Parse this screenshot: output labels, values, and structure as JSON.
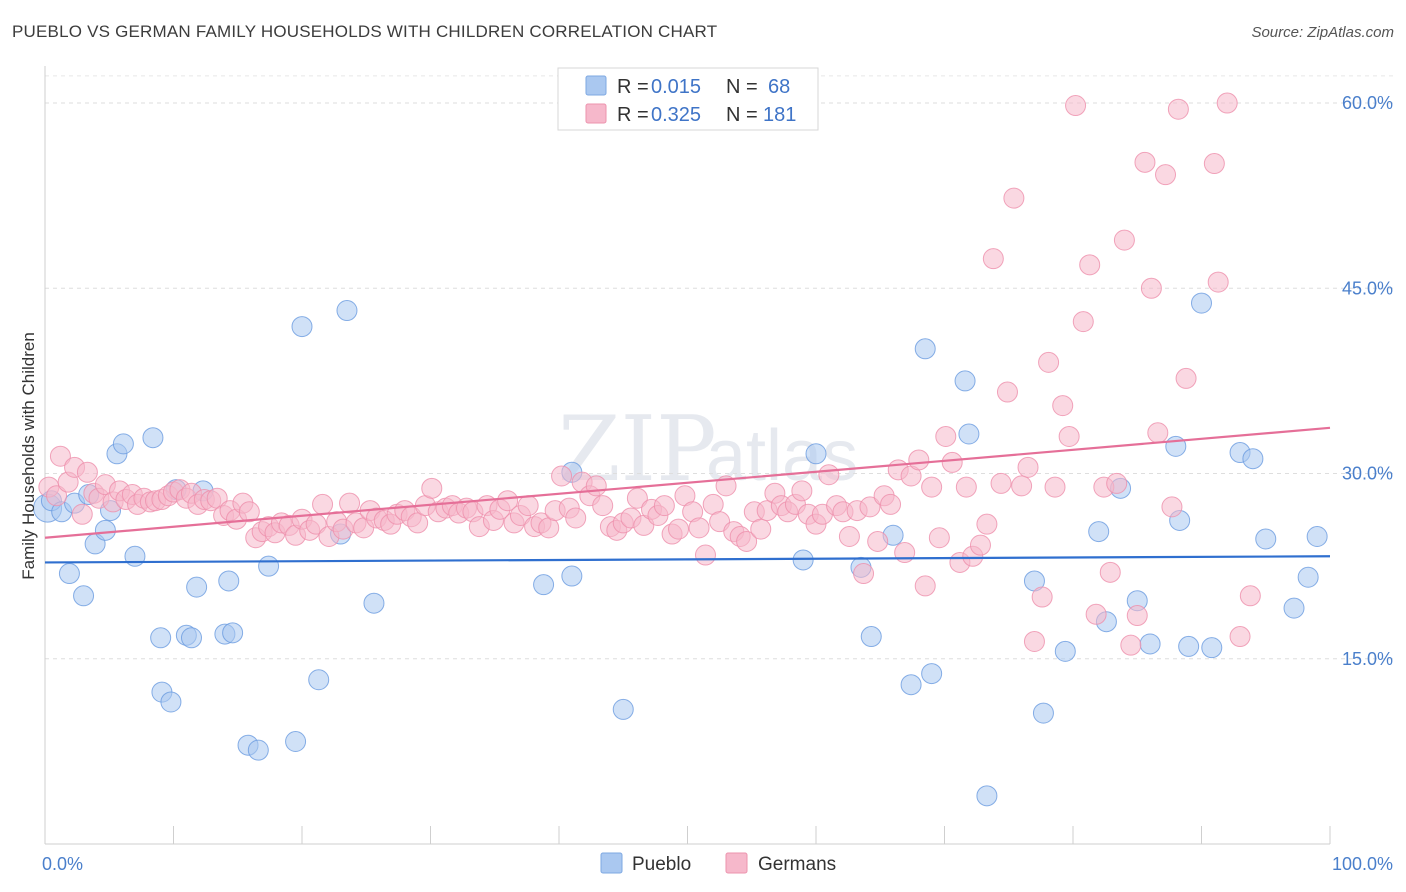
{
  "title": "PUEBLO VS GERMAN FAMILY HOUSEHOLDS WITH CHILDREN CORRELATION CHART",
  "source": "Source: ZipAtlas.com",
  "watermark": {
    "zip": "ZIP",
    "atlas": "atlas"
  },
  "legend_top": [
    {
      "r_label": "R =",
      "r_value": "0.015",
      "n_label": "N =",
      "n_value": "68",
      "color": "#aac8f0"
    },
    {
      "r_label": "R =",
      "r_value": "0.325",
      "n_label": "N =",
      "n_value": "181",
      "color": "#f6b8cb"
    }
  ],
  "legend_bottom": [
    {
      "label": "Pueblo",
      "color": "#aac8f0"
    },
    {
      "label": "Germans",
      "color": "#f6b8cb"
    }
  ],
  "chart_data": {
    "type": "scatter",
    "title": "PUEBLO VS GERMAN FAMILY HOUSEHOLDS WITH CHILDREN CORRELATION CHART",
    "xlabel": "",
    "ylabel": "Family Households with Children",
    "xlim": [
      0,
      100
    ],
    "ylim": [
      0,
      63
    ],
    "x_tick_labels": [
      "0.0%",
      "100.0%"
    ],
    "y_ticks": [
      15,
      30,
      45,
      60
    ],
    "y_tick_labels": [
      "15.0%",
      "30.0%",
      "45.0%",
      "60.0%"
    ],
    "grid": true,
    "legend_position": "top-center",
    "series": [
      {
        "name": "Pueblo",
        "color": "#6a9be0",
        "fill": "#aac8f0",
        "trend": {
          "x": [
            0,
            100
          ],
          "y": [
            22.8,
            23.3
          ],
          "color": "#2f6fcf"
        },
        "points": [
          [
            0.2,
            27.2
          ],
          [
            0.5,
            27.8
          ],
          [
            1.3,
            26.9
          ],
          [
            1.9,
            21.9
          ],
          [
            2.3,
            27.6
          ],
          [
            3.0,
            20.1
          ],
          [
            3.4,
            28.3
          ],
          [
            3.9,
            24.3
          ],
          [
            4.7,
            25.4
          ],
          [
            5.1,
            27.0
          ],
          [
            5.6,
            31.6
          ],
          [
            6.1,
            32.4
          ],
          [
            7.0,
            23.3
          ],
          [
            8.4,
            32.9
          ],
          [
            9.0,
            16.7
          ],
          [
            9.1,
            12.3
          ],
          [
            9.8,
            11.5
          ],
          [
            10.2,
            28.7
          ],
          [
            11.0,
            16.9
          ],
          [
            11.4,
            16.7
          ],
          [
            11.8,
            20.8
          ],
          [
            12.3,
            28.6
          ],
          [
            14.0,
            17.0
          ],
          [
            14.3,
            21.3
          ],
          [
            14.6,
            17.1
          ],
          [
            15.8,
            8.0
          ],
          [
            16.6,
            7.6
          ],
          [
            17.4,
            22.5
          ],
          [
            19.5,
            8.3
          ],
          [
            20.0,
            41.9
          ],
          [
            21.3,
            13.3
          ],
          [
            23.0,
            25.1
          ],
          [
            23.5,
            43.2
          ],
          [
            25.6,
            19.5
          ],
          [
            38.8,
            21.0
          ],
          [
            41.0,
            30.1
          ],
          [
            41.0,
            21.7
          ],
          [
            45.0,
            10.9
          ],
          [
            59.0,
            23.0
          ],
          [
            60.0,
            31.6
          ],
          [
            63.5,
            22.4
          ],
          [
            64.3,
            16.8
          ],
          [
            66.0,
            25.0
          ],
          [
            67.4,
            12.9
          ],
          [
            68.5,
            40.1
          ],
          [
            69.0,
            13.8
          ],
          [
            71.6,
            37.5
          ],
          [
            71.9,
            33.2
          ],
          [
            73.3,
            3.9
          ],
          [
            77.0,
            21.3
          ],
          [
            77.7,
            10.6
          ],
          [
            79.4,
            15.6
          ],
          [
            82.0,
            25.3
          ],
          [
            82.6,
            18.0
          ],
          [
            83.7,
            28.8
          ],
          [
            85.0,
            19.7
          ],
          [
            86.0,
            16.2
          ],
          [
            88.0,
            32.2
          ],
          [
            88.3,
            26.2
          ],
          [
            89.0,
            16.0
          ],
          [
            90.0,
            43.8
          ],
          [
            90.8,
            15.9
          ],
          [
            93.0,
            31.7
          ],
          [
            94.0,
            31.2
          ],
          [
            95.0,
            24.7
          ],
          [
            97.2,
            19.1
          ],
          [
            98.3,
            21.6
          ],
          [
            99.0,
            24.9
          ]
        ]
      },
      {
        "name": "Germans",
        "color": "#ee8fab",
        "fill": "#f6b8cb",
        "trend": {
          "x": [
            0,
            100
          ],
          "y": [
            24.8,
            33.7
          ],
          "color": "#e56f98"
        },
        "points": [
          [
            0.3,
            28.9
          ],
          [
            0.9,
            28.2
          ],
          [
            1.2,
            31.4
          ],
          [
            1.8,
            29.3
          ],
          [
            2.3,
            30.5
          ],
          [
            2.9,
            26.7
          ],
          [
            3.3,
            30.1
          ],
          [
            3.8,
            28.4
          ],
          [
            4.2,
            28.0
          ],
          [
            4.7,
            29.1
          ],
          [
            5.3,
            27.7
          ],
          [
            5.8,
            28.6
          ],
          [
            6.3,
            27.9
          ],
          [
            6.8,
            28.3
          ],
          [
            7.2,
            27.5
          ],
          [
            7.7,
            28.0
          ],
          [
            8.2,
            27.7
          ],
          [
            8.6,
            27.8
          ],
          [
            9.1,
            27.9
          ],
          [
            9.6,
            28.2
          ],
          [
            10.0,
            28.5
          ],
          [
            10.5,
            28.7
          ],
          [
            11.0,
            28.0
          ],
          [
            11.4,
            28.4
          ],
          [
            11.9,
            27.5
          ],
          [
            12.4,
            27.9
          ],
          [
            12.9,
            27.8
          ],
          [
            13.4,
            28.0
          ],
          [
            13.9,
            26.6
          ],
          [
            14.4,
            27.0
          ],
          [
            14.9,
            26.3
          ],
          [
            15.4,
            27.6
          ],
          [
            15.9,
            26.9
          ],
          [
            16.4,
            24.8
          ],
          [
            16.9,
            25.3
          ],
          [
            17.4,
            25.7
          ],
          [
            17.9,
            25.2
          ],
          [
            18.4,
            26.0
          ],
          [
            19.0,
            25.8
          ],
          [
            19.5,
            25.0
          ],
          [
            20.0,
            26.3
          ],
          [
            20.6,
            25.4
          ],
          [
            21.1,
            25.9
          ],
          [
            21.6,
            27.5
          ],
          [
            22.1,
            24.9
          ],
          [
            22.7,
            26.1
          ],
          [
            23.2,
            25.5
          ],
          [
            23.7,
            27.6
          ],
          [
            24.2,
            26.0
          ],
          [
            24.8,
            25.6
          ],
          [
            25.3,
            27.0
          ],
          [
            25.8,
            26.4
          ],
          [
            26.4,
            26.2
          ],
          [
            26.9,
            25.9
          ],
          [
            27.4,
            26.7
          ],
          [
            28.0,
            27.0
          ],
          [
            28.5,
            26.5
          ],
          [
            29.0,
            26.0
          ],
          [
            29.6,
            27.4
          ],
          [
            30.1,
            28.8
          ],
          [
            30.6,
            26.9
          ],
          [
            31.2,
            27.2
          ],
          [
            31.7,
            27.4
          ],
          [
            32.2,
            26.8
          ],
          [
            32.8,
            27.2
          ],
          [
            33.3,
            26.9
          ],
          [
            33.8,
            25.7
          ],
          [
            34.4,
            27.4
          ],
          [
            34.9,
            26.2
          ],
          [
            35.4,
            27.1
          ],
          [
            36.0,
            27.8
          ],
          [
            36.5,
            26.0
          ],
          [
            37.0,
            26.6
          ],
          [
            37.6,
            27.4
          ],
          [
            38.1,
            25.7
          ],
          [
            38.6,
            26.0
          ],
          [
            39.2,
            25.6
          ],
          [
            39.7,
            27.0
          ],
          [
            40.2,
            29.8
          ],
          [
            40.8,
            27.2
          ],
          [
            41.3,
            26.4
          ],
          [
            41.8,
            29.3
          ],
          [
            42.4,
            28.2
          ],
          [
            42.9,
            29.0
          ],
          [
            43.4,
            27.4
          ],
          [
            44.0,
            25.7
          ],
          [
            44.5,
            25.4
          ],
          [
            45.0,
            26.0
          ],
          [
            45.6,
            26.4
          ],
          [
            46.1,
            28.0
          ],
          [
            46.6,
            25.8
          ],
          [
            47.2,
            27.1
          ],
          [
            47.7,
            26.6
          ],
          [
            48.2,
            27.4
          ],
          [
            48.8,
            25.1
          ],
          [
            49.3,
            25.5
          ],
          [
            49.8,
            28.2
          ],
          [
            50.4,
            26.9
          ],
          [
            50.9,
            25.6
          ],
          [
            51.4,
            23.4
          ],
          [
            52.0,
            27.5
          ],
          [
            52.5,
            26.1
          ],
          [
            53.0,
            29.0
          ],
          [
            53.6,
            25.3
          ],
          [
            54.1,
            24.9
          ],
          [
            54.6,
            24.5
          ],
          [
            55.2,
            26.9
          ],
          [
            55.7,
            25.5
          ],
          [
            56.2,
            27.0
          ],
          [
            56.8,
            28.4
          ],
          [
            57.3,
            27.4
          ],
          [
            57.8,
            26.9
          ],
          [
            58.4,
            27.5
          ],
          [
            58.9,
            28.6
          ],
          [
            59.4,
            26.7
          ],
          [
            60.0,
            25.9
          ],
          [
            60.5,
            26.7
          ],
          [
            61.0,
            29.9
          ],
          [
            61.6,
            27.4
          ],
          [
            62.1,
            26.9
          ],
          [
            62.6,
            24.9
          ],
          [
            63.2,
            27.0
          ],
          [
            63.7,
            21.9
          ],
          [
            64.2,
            27.3
          ],
          [
            64.8,
            24.5
          ],
          [
            65.3,
            28.2
          ],
          [
            65.8,
            27.5
          ],
          [
            66.4,
            30.3
          ],
          [
            66.9,
            23.6
          ],
          [
            67.4,
            29.8
          ],
          [
            68.0,
            31.1
          ],
          [
            68.5,
            20.9
          ],
          [
            69.0,
            28.9
          ],
          [
            69.6,
            24.8
          ],
          [
            70.1,
            33.0
          ],
          [
            70.6,
            30.9
          ],
          [
            71.2,
            22.8
          ],
          [
            71.7,
            28.9
          ],
          [
            72.2,
            23.3
          ],
          [
            72.8,
            24.2
          ],
          [
            73.3,
            25.9
          ],
          [
            73.8,
            47.4
          ],
          [
            74.4,
            29.2
          ],
          [
            74.9,
            36.6
          ],
          [
            75.4,
            52.3
          ],
          [
            76.0,
            29.0
          ],
          [
            76.5,
            30.5
          ],
          [
            77.0,
            16.4
          ],
          [
            77.6,
            20.0
          ],
          [
            78.1,
            39.0
          ],
          [
            78.6,
            28.9
          ],
          [
            79.2,
            35.5
          ],
          [
            79.7,
            33.0
          ],
          [
            80.2,
            59.8
          ],
          [
            80.8,
            42.3
          ],
          [
            81.3,
            46.9
          ],
          [
            81.8,
            18.6
          ],
          [
            82.4,
            28.9
          ],
          [
            82.9,
            22.0
          ],
          [
            83.4,
            29.2
          ],
          [
            84.0,
            48.9
          ],
          [
            84.5,
            16.1
          ],
          [
            85.0,
            18.5
          ],
          [
            85.6,
            55.2
          ],
          [
            86.1,
            45.0
          ],
          [
            86.6,
            33.3
          ],
          [
            87.2,
            54.2
          ],
          [
            87.7,
            27.3
          ],
          [
            88.2,
            59.5
          ],
          [
            88.8,
            37.7
          ],
          [
            91.0,
            55.1
          ],
          [
            91.3,
            45.5
          ],
          [
            92.0,
            60.0
          ],
          [
            93.0,
            16.8
          ],
          [
            93.8,
            20.1
          ]
        ]
      }
    ]
  }
}
